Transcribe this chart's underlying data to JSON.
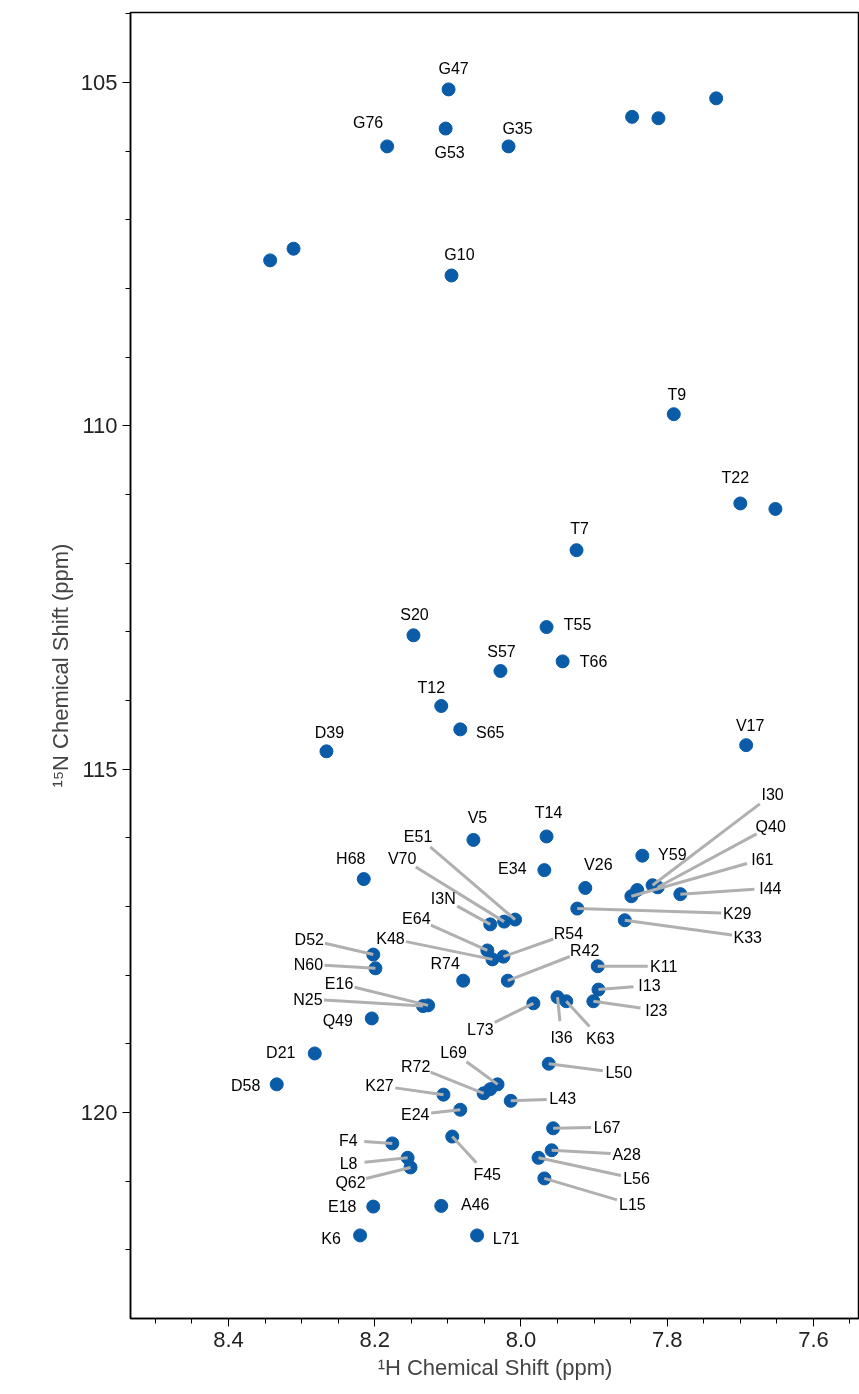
{
  "chart_data": {
    "type": "scatter",
    "xlabel": "¹H Chemical Shift (ppm)",
    "ylabel": "¹⁵N Chemical Shift (ppm)",
    "xlim": [
      8.534,
      7.537
    ],
    "ylim": [
      123.0,
      103.98
    ],
    "xticks": [
      {
        "value": 8.5,
        "label": null
      },
      {
        "value": 8.45,
        "label": null
      },
      8.4,
      {
        "value": 8.35,
        "label": null
      },
      {
        "value": 8.3,
        "label": null
      },
      {
        "value": 8.25,
        "label": null
      },
      8.2,
      {
        "value": 8.15,
        "label": null
      },
      {
        "value": 8.1,
        "label": null
      },
      {
        "value": 8.05,
        "label": null
      },
      {
        "value": 8.0,
        "label": "8.0"
      },
      {
        "value": 7.95,
        "label": null
      },
      {
        "value": 7.9,
        "label": null
      },
      {
        "value": 7.85,
        "label": null
      },
      7.8,
      {
        "value": 7.75,
        "label": null
      },
      {
        "value": 7.7,
        "label": null
      },
      {
        "value": 7.65,
        "label": null
      },
      7.6,
      {
        "value": 7.55,
        "label": null
      }
    ],
    "yticks": [
      {
        "value": 104,
        "label": null
      },
      105,
      {
        "value": 106,
        "label": null
      },
      {
        "value": 107,
        "label": null
      },
      {
        "value": 108,
        "label": null
      },
      {
        "value": 109,
        "label": null
      },
      110,
      {
        "value": 111,
        "label": null
      },
      {
        "value": 112,
        "label": null
      },
      {
        "value": 113,
        "label": null
      },
      {
        "value": 114,
        "label": null
      },
      115,
      {
        "value": 116,
        "label": null
      },
      {
        "value": 117,
        "label": null
      },
      {
        "value": 118,
        "label": null
      },
      {
        "value": 119,
        "label": null
      },
      120,
      {
        "value": 121,
        "label": null
      },
      {
        "value": 122,
        "label": null
      }
    ],
    "grid": false,
    "marker": "circle",
    "series": [
      {
        "color": "#0a5ca8",
        "x": [
          8.099,
          8.183,
          8.103,
          8.017,
          8.095,
          7.791,
          7.7,
          7.924,
          8.147,
          7.965,
          7.943,
          8.028,
          8.109,
          8.083,
          8.266,
          7.692,
          7.834,
          7.965,
          8.065,
          7.968,
          8.215,
          7.912,
          7.82,
          7.813,
          7.849,
          7.782,
          7.923,
          7.858,
          8.008,
          8.023,
          8.042,
          8.046,
          8.039,
          8.024,
          8.018,
          8.202,
          8.199,
          8.079,
          8.127,
          8.134,
          8.204,
          7.895,
          7.894,
          7.901,
          7.95,
          7.938,
          7.983,
          8.282,
          8.334,
          7.962,
          8.032,
          8.051,
          8.106,
          8.014,
          8.083,
          8.094,
          8.176,
          8.155,
          8.151,
          7.956,
          7.958,
          7.976,
          7.968,
          8.202,
          8.109,
          8.22,
          8.06,
          7.848,
          7.812,
          7.733,
          8.343,
          8.311,
          7.652,
          8.042,
          7.841
        ],
        "values": [
          105.1,
          105.93,
          105.67,
          105.93,
          107.81,
          109.83,
          111.13,
          111.81,
          113.05,
          112.93,
          113.43,
          113.57,
          114.08,
          114.42,
          114.74,
          114.65,
          116.26,
          115.98,
          116.03,
          116.47,
          116.6,
          116.73,
          116.69,
          116.72,
          116.85,
          116.82,
          117.03,
          117.2,
          117.19,
          117.22,
          117.26,
          117.64,
          117.77,
          117.73,
          118.08,
          117.7,
          117.9,
          118.08,
          118.44,
          118.45,
          118.63,
          117.87,
          118.21,
          118.38,
          118.32,
          118.38,
          118.41,
          119.14,
          119.59,
          119.29,
          119.59,
          119.72,
          119.74,
          119.83,
          119.96,
          120.35,
          120.45,
          120.66,
          120.8,
          120.23,
          120.55,
          120.66,
          120.96,
          121.37,
          121.36,
          121.79,
          121.79,
          105.5,
          105.52,
          105.23,
          107.59,
          107.42,
          111.21,
          119.66,
          116.76
        ]
      }
    ],
    "annotations": [
      {
        "text": "G47",
        "x": 8.099,
        "y": 105.1
      },
      {
        "text": "G76",
        "x": 8.183,
        "y": 105.93
      },
      {
        "text": "G53",
        "x": 8.103,
        "y": 105.67
      },
      {
        "text": "G35",
        "x": 8.017,
        "y": 105.93
      },
      {
        "text": "G10",
        "x": 8.095,
        "y": 107.81
      },
      {
        "text": "T9",
        "x": 7.791,
        "y": 109.83
      },
      {
        "text": "T22",
        "x": 7.7,
        "y": 111.13
      },
      {
        "text": "T7",
        "x": 7.924,
        "y": 111.81
      },
      {
        "text": "S20",
        "x": 8.147,
        "y": 113.05
      },
      {
        "text": "T55",
        "x": 7.965,
        "y": 112.93
      },
      {
        "text": "T66",
        "x": 7.943,
        "y": 113.43
      },
      {
        "text": "S57",
        "x": 8.028,
        "y": 113.57
      },
      {
        "text": "T12",
        "x": 8.109,
        "y": 114.08
      },
      {
        "text": "S65",
        "x": 8.083,
        "y": 114.42
      },
      {
        "text": "D39",
        "x": 8.266,
        "y": 114.74
      },
      {
        "text": "V17",
        "x": 7.692,
        "y": 114.65
      },
      {
        "text": "Y59",
        "x": 7.834,
        "y": 116.26
      },
      {
        "text": "T14",
        "x": 7.965,
        "y": 115.98
      },
      {
        "text": "V5",
        "x": 8.065,
        "y": 116.03
      },
      {
        "text": "E34",
        "x": 7.968,
        "y": 116.47
      },
      {
        "text": "H68",
        "x": 8.215,
        "y": 116.6
      },
      {
        "text": "V26",
        "x": 7.912,
        "y": 116.73
      },
      {
        "text": "I30",
        "x": 7.82,
        "y": 116.69
      },
      {
        "text": "Q40",
        "x": 7.813,
        "y": 116.72
      },
      {
        "text": "I61",
        "x": 7.849,
        "y": 116.85
      },
      {
        "text": "I44",
        "x": 7.782,
        "y": 116.82
      },
      {
        "text": "K29",
        "x": 7.923,
        "y": 117.03
      },
      {
        "text": "K33",
        "x": 7.858,
        "y": 117.2
      },
      {
        "text": "E51",
        "x": 8.008,
        "y": 117.19
      },
      {
        "text": "V70",
        "x": 8.023,
        "y": 117.22
      },
      {
        "text": "I3N",
        "x": 8.042,
        "y": 117.26
      },
      {
        "text": "E64",
        "x": 8.046,
        "y": 117.64
      },
      {
        "text": "K48",
        "x": 8.039,
        "y": 117.77
      },
      {
        "text": "R54",
        "x": 8.024,
        "y": 117.73
      },
      {
        "text": "R42",
        "x": 8.018,
        "y": 118.08
      },
      {
        "text": "D52",
        "x": 8.202,
        "y": 117.7
      },
      {
        "text": "N60",
        "x": 8.199,
        "y": 117.9
      },
      {
        "text": "R74",
        "x": 8.079,
        "y": 118.08
      },
      {
        "text": "E16",
        "x": 8.127,
        "y": 118.44
      },
      {
        "text": "N25",
        "x": 8.134,
        "y": 118.45
      },
      {
        "text": "Q49",
        "x": 8.204,
        "y": 118.63
      },
      {
        "text": "K11",
        "x": 7.895,
        "y": 117.87
      },
      {
        "text": "I13",
        "x": 7.894,
        "y": 118.21
      },
      {
        "text": "I23",
        "x": 7.901,
        "y": 118.38
      },
      {
        "text": "I36",
        "x": 7.95,
        "y": 118.32
      },
      {
        "text": "K63",
        "x": 7.938,
        "y": 118.38
      },
      {
        "text": "L73",
        "x": 7.983,
        "y": 118.41
      },
      {
        "text": "D21",
        "x": 8.282,
        "y": 119.14
      },
      {
        "text": "D58",
        "x": 8.334,
        "y": 119.59
      },
      {
        "text": "L50",
        "x": 7.962,
        "y": 119.29
      },
      {
        "text": "L69",
        "x": 8.032,
        "y": 119.59
      },
      {
        "text": "R72",
        "x": 8.051,
        "y": 119.72
      },
      {
        "text": "K27",
        "x": 8.106,
        "y": 119.74
      },
      {
        "text": "L43",
        "x": 8.014,
        "y": 119.83
      },
      {
        "text": "E24",
        "x": 8.083,
        "y": 119.96
      },
      {
        "text": "F45",
        "x": 8.094,
        "y": 120.35
      },
      {
        "text": "F4",
        "x": 8.176,
        "y": 120.45
      },
      {
        "text": "L8",
        "x": 8.155,
        "y": 120.66
      },
      {
        "text": "Q62",
        "x": 8.151,
        "y": 120.8
      },
      {
        "text": "L67",
        "x": 7.956,
        "y": 120.23
      },
      {
        "text": "A28",
        "x": 7.958,
        "y": 120.55
      },
      {
        "text": "L56",
        "x": 7.976,
        "y": 120.66
      },
      {
        "text": "L15",
        "x": 7.968,
        "y": 120.96
      },
      {
        "text": "E18",
        "x": 8.202,
        "y": 121.37
      },
      {
        "text": "A46",
        "x": 8.109,
        "y": 121.36
      },
      {
        "text": "K6",
        "x": 8.22,
        "y": 121.79
      },
      {
        "text": "L71",
        "x": 8.06,
        "y": 121.79
      }
    ]
  }
}
